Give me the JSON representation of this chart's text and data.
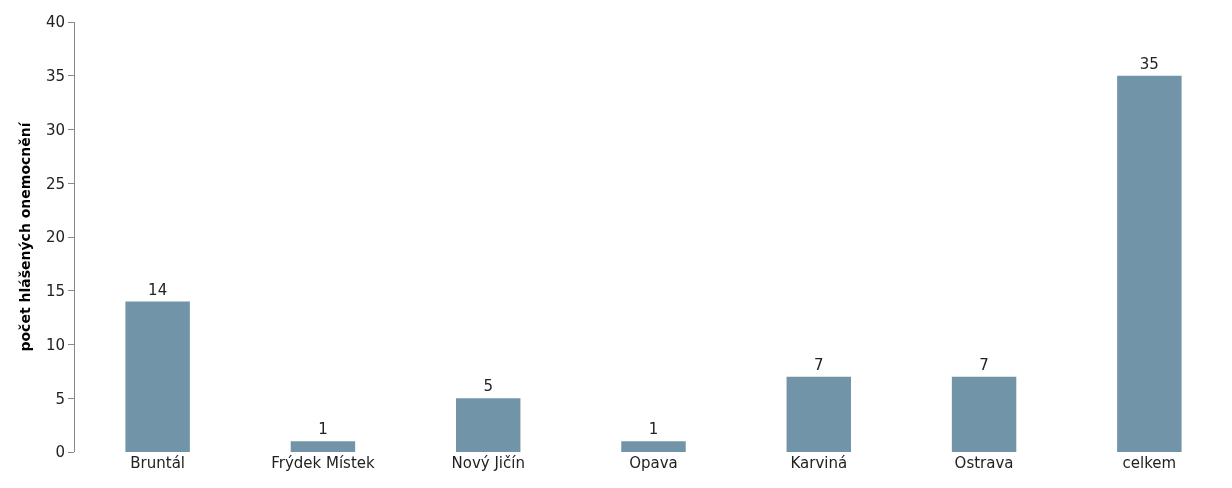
{
  "chart_data": {
    "type": "bar",
    "ylabel": "počet hlášených onemocnění",
    "categories": [
      "Bruntál",
      "Frýdek Místek",
      "Nový Jičín",
      "Opava",
      "Karviná",
      "Ostrava",
      "celkem"
    ],
    "values": [
      14,
      1,
      5,
      1,
      7,
      7,
      35
    ],
    "color": "#7294a8",
    "ylim": [
      0,
      40
    ],
    "yticks": [
      0,
      5,
      10,
      15,
      20,
      25,
      30,
      35,
      40
    ],
    "grid": false,
    "legend": false,
    "data_labels": true
  }
}
